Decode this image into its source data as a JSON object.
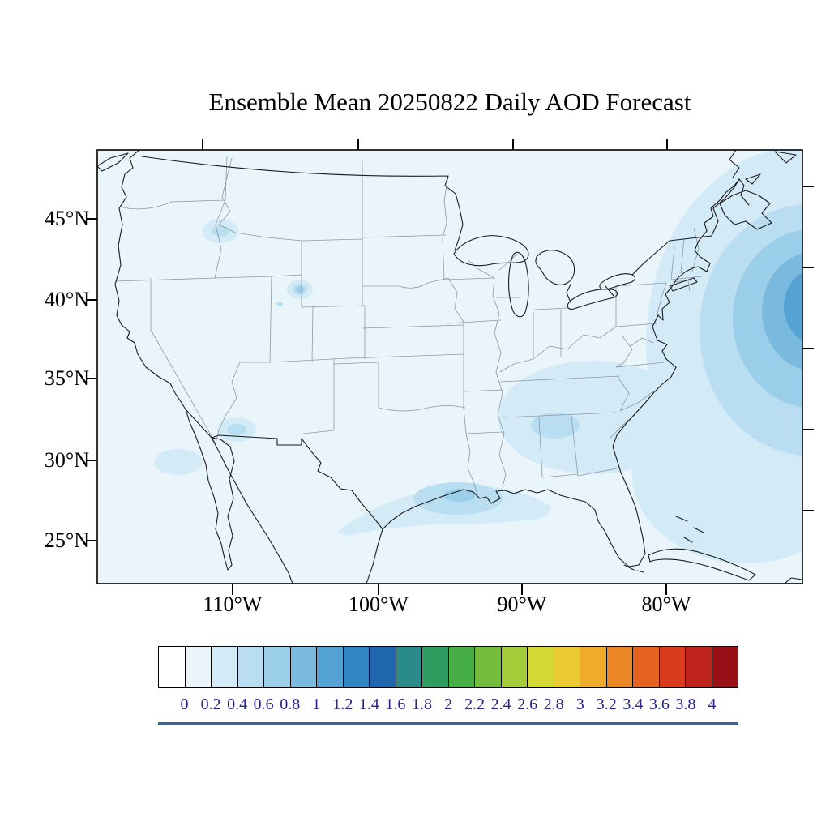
{
  "title": "Ensemble Mean 20250822 Daily AOD Forecast",
  "map": {
    "y_axis": {
      "labels": [
        "45°N",
        "40°N",
        "35°N",
        "30°N",
        "25°N"
      ]
    },
    "x_axis": {
      "labels": [
        "110°W",
        "100°W",
        "90°W",
        "80°W"
      ]
    }
  },
  "colorbar": {
    "tick_labels": [
      "0",
      "0.2",
      "0.4",
      "0.6",
      "0.8",
      "1",
      "1.2",
      "1.4",
      "1.6",
      "1.8",
      "2",
      "2.2",
      "2.4",
      "2.6",
      "2.8",
      "3",
      "3.2",
      "3.4",
      "3.6",
      "3.8",
      "4"
    ],
    "colors": [
      "#ffffff",
      "#e9f4fb",
      "#d3eaf7",
      "#b9def1",
      "#9bcfe9",
      "#79bade",
      "#54a3d3",
      "#2f86c2",
      "#1f66ae",
      "#2b8a8a",
      "#2e9d5f",
      "#47ad45",
      "#73bc3c",
      "#a3cc38",
      "#d3d835",
      "#e9ca33",
      "#eeab2c",
      "#ec8726",
      "#e5621f",
      "#d83c1d",
      "#bf211b",
      "#991117"
    ],
    "label_color": "#26268c",
    "underline_color": "#3465a4"
  },
  "chart_data": {
    "type": "heatmap",
    "title": "Ensemble Mean 20250822 Daily AOD Forecast",
    "variable": "AOD",
    "region": "Contiguous United States with surrounding ocean, southern Canada, northern Mexico, Cuba",
    "lat_ticks": [
      "45°N",
      "40°N",
      "35°N",
      "30°N",
      "25°N"
    ],
    "lon_ticks": [
      "110°W",
      "100°W",
      "90°W",
      "80°W"
    ],
    "colorbar_levels": [
      0,
      0.2,
      0.4,
      0.6,
      0.8,
      1,
      1.2,
      1.4,
      1.6,
      1.8,
      2,
      2.2,
      2.4,
      2.6,
      2.8,
      3,
      3.2,
      3.4,
      3.6,
      3.8,
      4
    ],
    "features": [
      {
        "area": "background over most of the domain",
        "aod": "0-0.2"
      },
      {
        "area": "western Atlantic off Mid-Atlantic / New England coast (~40N, right map edge)",
        "aod": "maximum plume, up to ~1.2-1.4 at core"
      },
      {
        "area": "Gulf coast, Texas-Louisiana offshore band",
        "aod": "0.2-0.8 with small core near Houston"
      },
      {
        "area": "Southeast US (TN/MS/AL/GA/SC)",
        "aod": "0.2-0.4"
      },
      {
        "area": "small spots: Idaho panhandle, northern Utah, Arizona, southern California bight",
        "aod": "0.2-0.8"
      }
    ],
    "legend_position": "bottom horizontal labelbar",
    "grid": "off (edge ticks only)"
  }
}
